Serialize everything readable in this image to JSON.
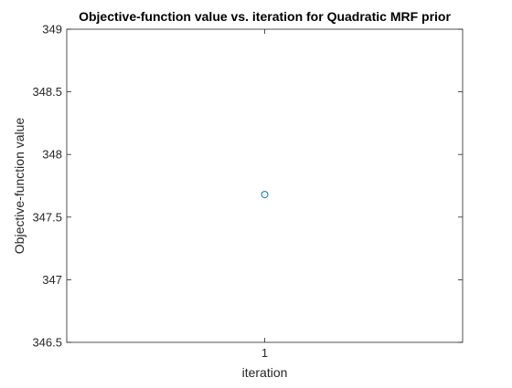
{
  "chart_data": {
    "type": "scatter",
    "title": "Objective-function value vs. iteration for Quadratic MRF prior",
    "xlabel": "iteration",
    "ylabel": "Objective-function value",
    "xlim": [
      0,
      2
    ],
    "ylim": [
      346.5,
      349
    ],
    "x_ticks": [
      1
    ],
    "x_tick_labels": [
      "1"
    ],
    "y_ticks": [
      346.5,
      347,
      347.5,
      348,
      348.5,
      349
    ],
    "y_tick_labels": [
      "346.5",
      "347",
      "347.5",
      "348",
      "348.5",
      "349"
    ],
    "grid": false,
    "legend": "none",
    "marker": "circle",
    "series": [
      {
        "x": [
          1
        ],
        "y": [
          347.68
        ],
        "color": "#0072BD"
      }
    ]
  }
}
